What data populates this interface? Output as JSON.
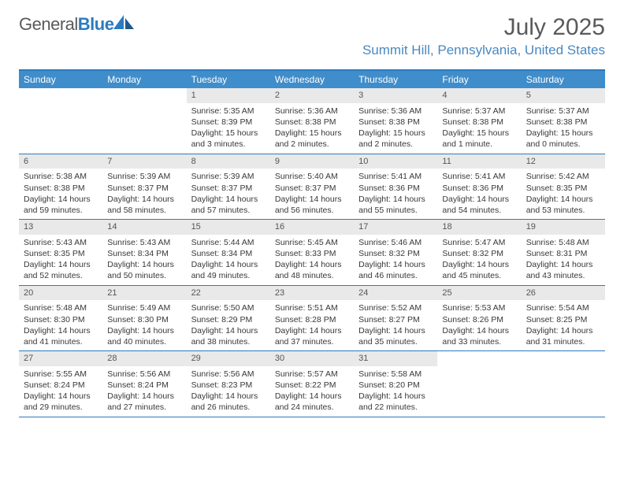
{
  "brand": {
    "name_part1": "General",
    "name_part2": "Blue"
  },
  "title": "July 2025",
  "location": "Summit Hill, Pennsylvania, United States",
  "colors": {
    "header_blue": "#3f8dca",
    "accent_blue": "#2b7bbf",
    "grey_bar": "#e9e9e9",
    "text": "#383838",
    "title_grey": "#5a5a5a",
    "location_blue": "#4a88c0"
  },
  "weekdays": [
    "Sunday",
    "Monday",
    "Tuesday",
    "Wednesday",
    "Thursday",
    "Friday",
    "Saturday"
  ],
  "weeks": [
    [
      {
        "empty": true
      },
      {
        "empty": true
      },
      {
        "num": "1",
        "sunrise": "5:35 AM",
        "sunset": "8:39 PM",
        "daylight": "15 hours and 3 minutes."
      },
      {
        "num": "2",
        "sunrise": "5:36 AM",
        "sunset": "8:38 PM",
        "daylight": "15 hours and 2 minutes."
      },
      {
        "num": "3",
        "sunrise": "5:36 AM",
        "sunset": "8:38 PM",
        "daylight": "15 hours and 2 minutes."
      },
      {
        "num": "4",
        "sunrise": "5:37 AM",
        "sunset": "8:38 PM",
        "daylight": "15 hours and 1 minute."
      },
      {
        "num": "5",
        "sunrise": "5:37 AM",
        "sunset": "8:38 PM",
        "daylight": "15 hours and 0 minutes."
      }
    ],
    [
      {
        "num": "6",
        "sunrise": "5:38 AM",
        "sunset": "8:38 PM",
        "daylight": "14 hours and 59 minutes."
      },
      {
        "num": "7",
        "sunrise": "5:39 AM",
        "sunset": "8:37 PM",
        "daylight": "14 hours and 58 minutes."
      },
      {
        "num": "8",
        "sunrise": "5:39 AM",
        "sunset": "8:37 PM",
        "daylight": "14 hours and 57 minutes."
      },
      {
        "num": "9",
        "sunrise": "5:40 AM",
        "sunset": "8:37 PM",
        "daylight": "14 hours and 56 minutes."
      },
      {
        "num": "10",
        "sunrise": "5:41 AM",
        "sunset": "8:36 PM",
        "daylight": "14 hours and 55 minutes."
      },
      {
        "num": "11",
        "sunrise": "5:41 AM",
        "sunset": "8:36 PM",
        "daylight": "14 hours and 54 minutes."
      },
      {
        "num": "12",
        "sunrise": "5:42 AM",
        "sunset": "8:35 PM",
        "daylight": "14 hours and 53 minutes."
      }
    ],
    [
      {
        "num": "13",
        "sunrise": "5:43 AM",
        "sunset": "8:35 PM",
        "daylight": "14 hours and 52 minutes."
      },
      {
        "num": "14",
        "sunrise": "5:43 AM",
        "sunset": "8:34 PM",
        "daylight": "14 hours and 50 minutes."
      },
      {
        "num": "15",
        "sunrise": "5:44 AM",
        "sunset": "8:34 PM",
        "daylight": "14 hours and 49 minutes."
      },
      {
        "num": "16",
        "sunrise": "5:45 AM",
        "sunset": "8:33 PM",
        "daylight": "14 hours and 48 minutes."
      },
      {
        "num": "17",
        "sunrise": "5:46 AM",
        "sunset": "8:32 PM",
        "daylight": "14 hours and 46 minutes."
      },
      {
        "num": "18",
        "sunrise": "5:47 AM",
        "sunset": "8:32 PM",
        "daylight": "14 hours and 45 minutes."
      },
      {
        "num": "19",
        "sunrise": "5:48 AM",
        "sunset": "8:31 PM",
        "daylight": "14 hours and 43 minutes."
      }
    ],
    [
      {
        "num": "20",
        "sunrise": "5:48 AM",
        "sunset": "8:30 PM",
        "daylight": "14 hours and 41 minutes."
      },
      {
        "num": "21",
        "sunrise": "5:49 AM",
        "sunset": "8:30 PM",
        "daylight": "14 hours and 40 minutes."
      },
      {
        "num": "22",
        "sunrise": "5:50 AM",
        "sunset": "8:29 PM",
        "daylight": "14 hours and 38 minutes."
      },
      {
        "num": "23",
        "sunrise": "5:51 AM",
        "sunset": "8:28 PM",
        "daylight": "14 hours and 37 minutes."
      },
      {
        "num": "24",
        "sunrise": "5:52 AM",
        "sunset": "8:27 PM",
        "daylight": "14 hours and 35 minutes."
      },
      {
        "num": "25",
        "sunrise": "5:53 AM",
        "sunset": "8:26 PM",
        "daylight": "14 hours and 33 minutes."
      },
      {
        "num": "26",
        "sunrise": "5:54 AM",
        "sunset": "8:25 PM",
        "daylight": "14 hours and 31 minutes."
      }
    ],
    [
      {
        "num": "27",
        "sunrise": "5:55 AM",
        "sunset": "8:24 PM",
        "daylight": "14 hours and 29 minutes."
      },
      {
        "num": "28",
        "sunrise": "5:56 AM",
        "sunset": "8:24 PM",
        "daylight": "14 hours and 27 minutes."
      },
      {
        "num": "29",
        "sunrise": "5:56 AM",
        "sunset": "8:23 PM",
        "daylight": "14 hours and 26 minutes."
      },
      {
        "num": "30",
        "sunrise": "5:57 AM",
        "sunset": "8:22 PM",
        "daylight": "14 hours and 24 minutes."
      },
      {
        "num": "31",
        "sunrise": "5:58 AM",
        "sunset": "8:20 PM",
        "daylight": "14 hours and 22 minutes."
      },
      {
        "empty": true
      },
      {
        "empty": true
      }
    ]
  ],
  "labels": {
    "sunrise": "Sunrise:",
    "sunset": "Sunset:",
    "daylight": "Daylight:"
  }
}
